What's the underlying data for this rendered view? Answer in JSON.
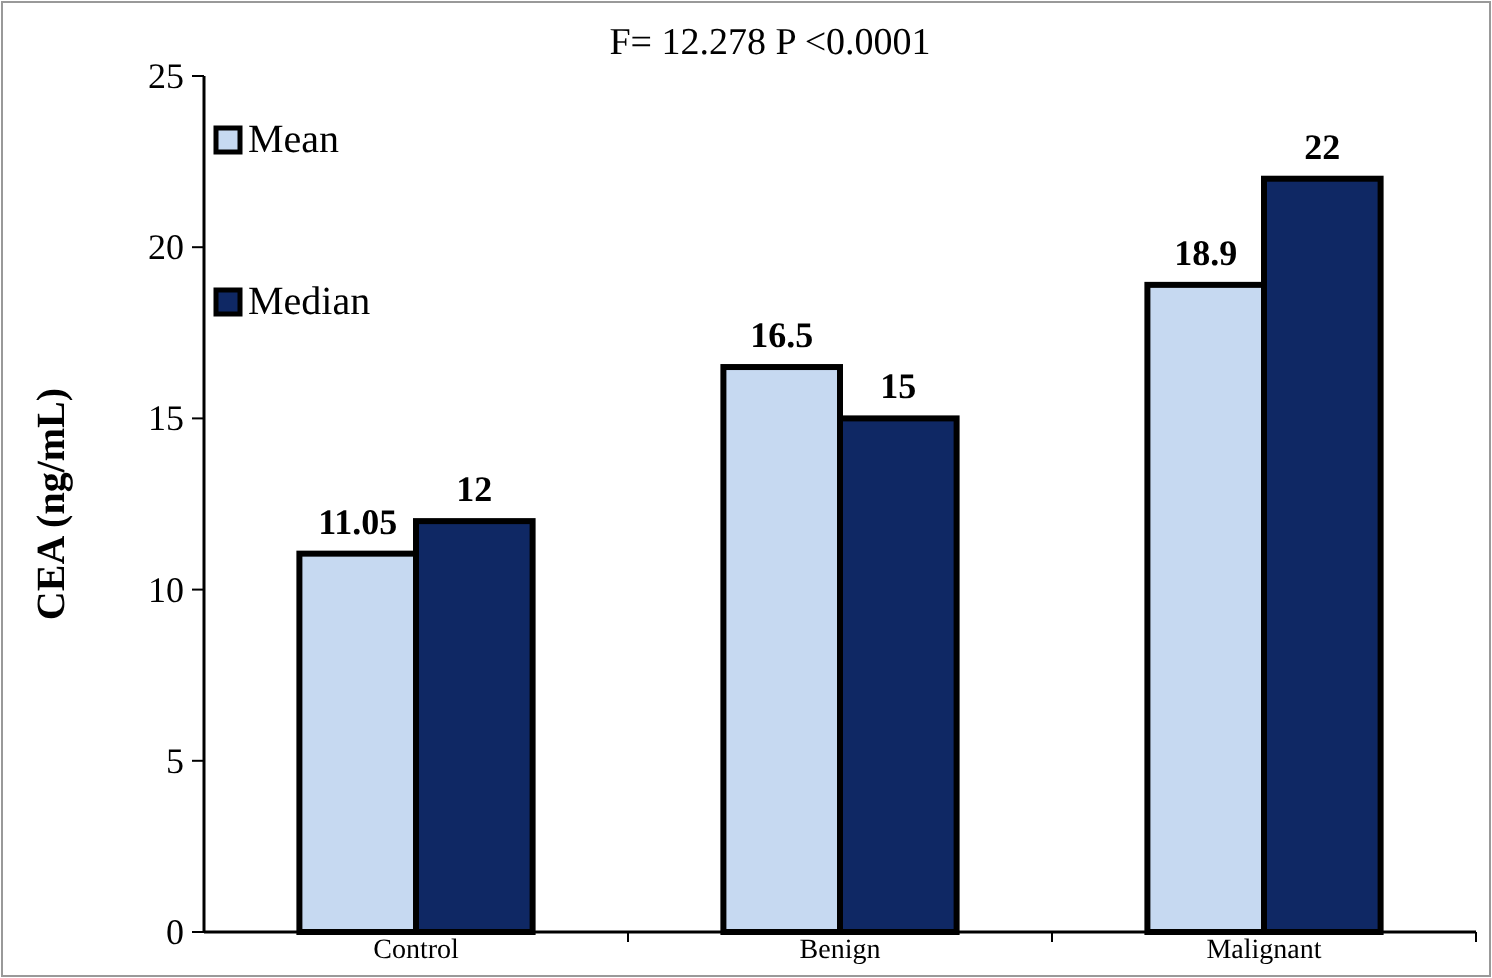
{
  "chart_data": {
    "type": "bar",
    "categories": [
      "Control",
      "Benign",
      "Malignant"
    ],
    "series": [
      {
        "name": "Mean",
        "color": "#c6d9f1",
        "values": [
          11.05,
          16.5,
          18.9
        ]
      },
      {
        "name": "Median",
        "color": "#0f2864",
        "values": [
          12,
          15,
          22
        ]
      }
    ],
    "ylabel": "CEA (ng/mL)",
    "ylim": [
      0,
      25
    ],
    "yticks": [
      0,
      5,
      10,
      15,
      20,
      25
    ],
    "data_labels": true,
    "legend": "top left",
    "annotations": [
      "F= 12.278 P <0.0001"
    ]
  }
}
